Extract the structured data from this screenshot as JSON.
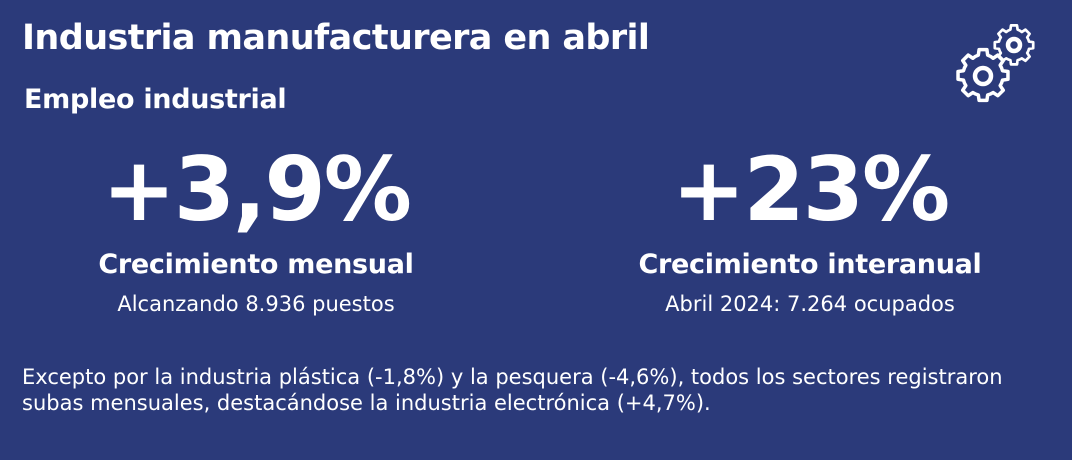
{
  "header": {
    "title": "Industria manufacturera en abril",
    "subtitle": "Empleo industrial",
    "icon": "gears-icon"
  },
  "stats": [
    {
      "value": "+3,9%",
      "label": "Crecimiento mensual",
      "description": "Alcanzando 8.936 puestos"
    },
    {
      "value": "+23%",
      "label": "Crecimiento interanual",
      "description": "Abril 2024: 7.264 ocupados"
    }
  ],
  "note": "Excepto por la industria plástica (-1,8%) y la pesquera (-4,6%), todos los sectores registraron subas mensuales, destacándose la industria electrónica (+4,7%).",
  "colors": {
    "background": "#2b3a7a",
    "text": "#ffffff"
  }
}
